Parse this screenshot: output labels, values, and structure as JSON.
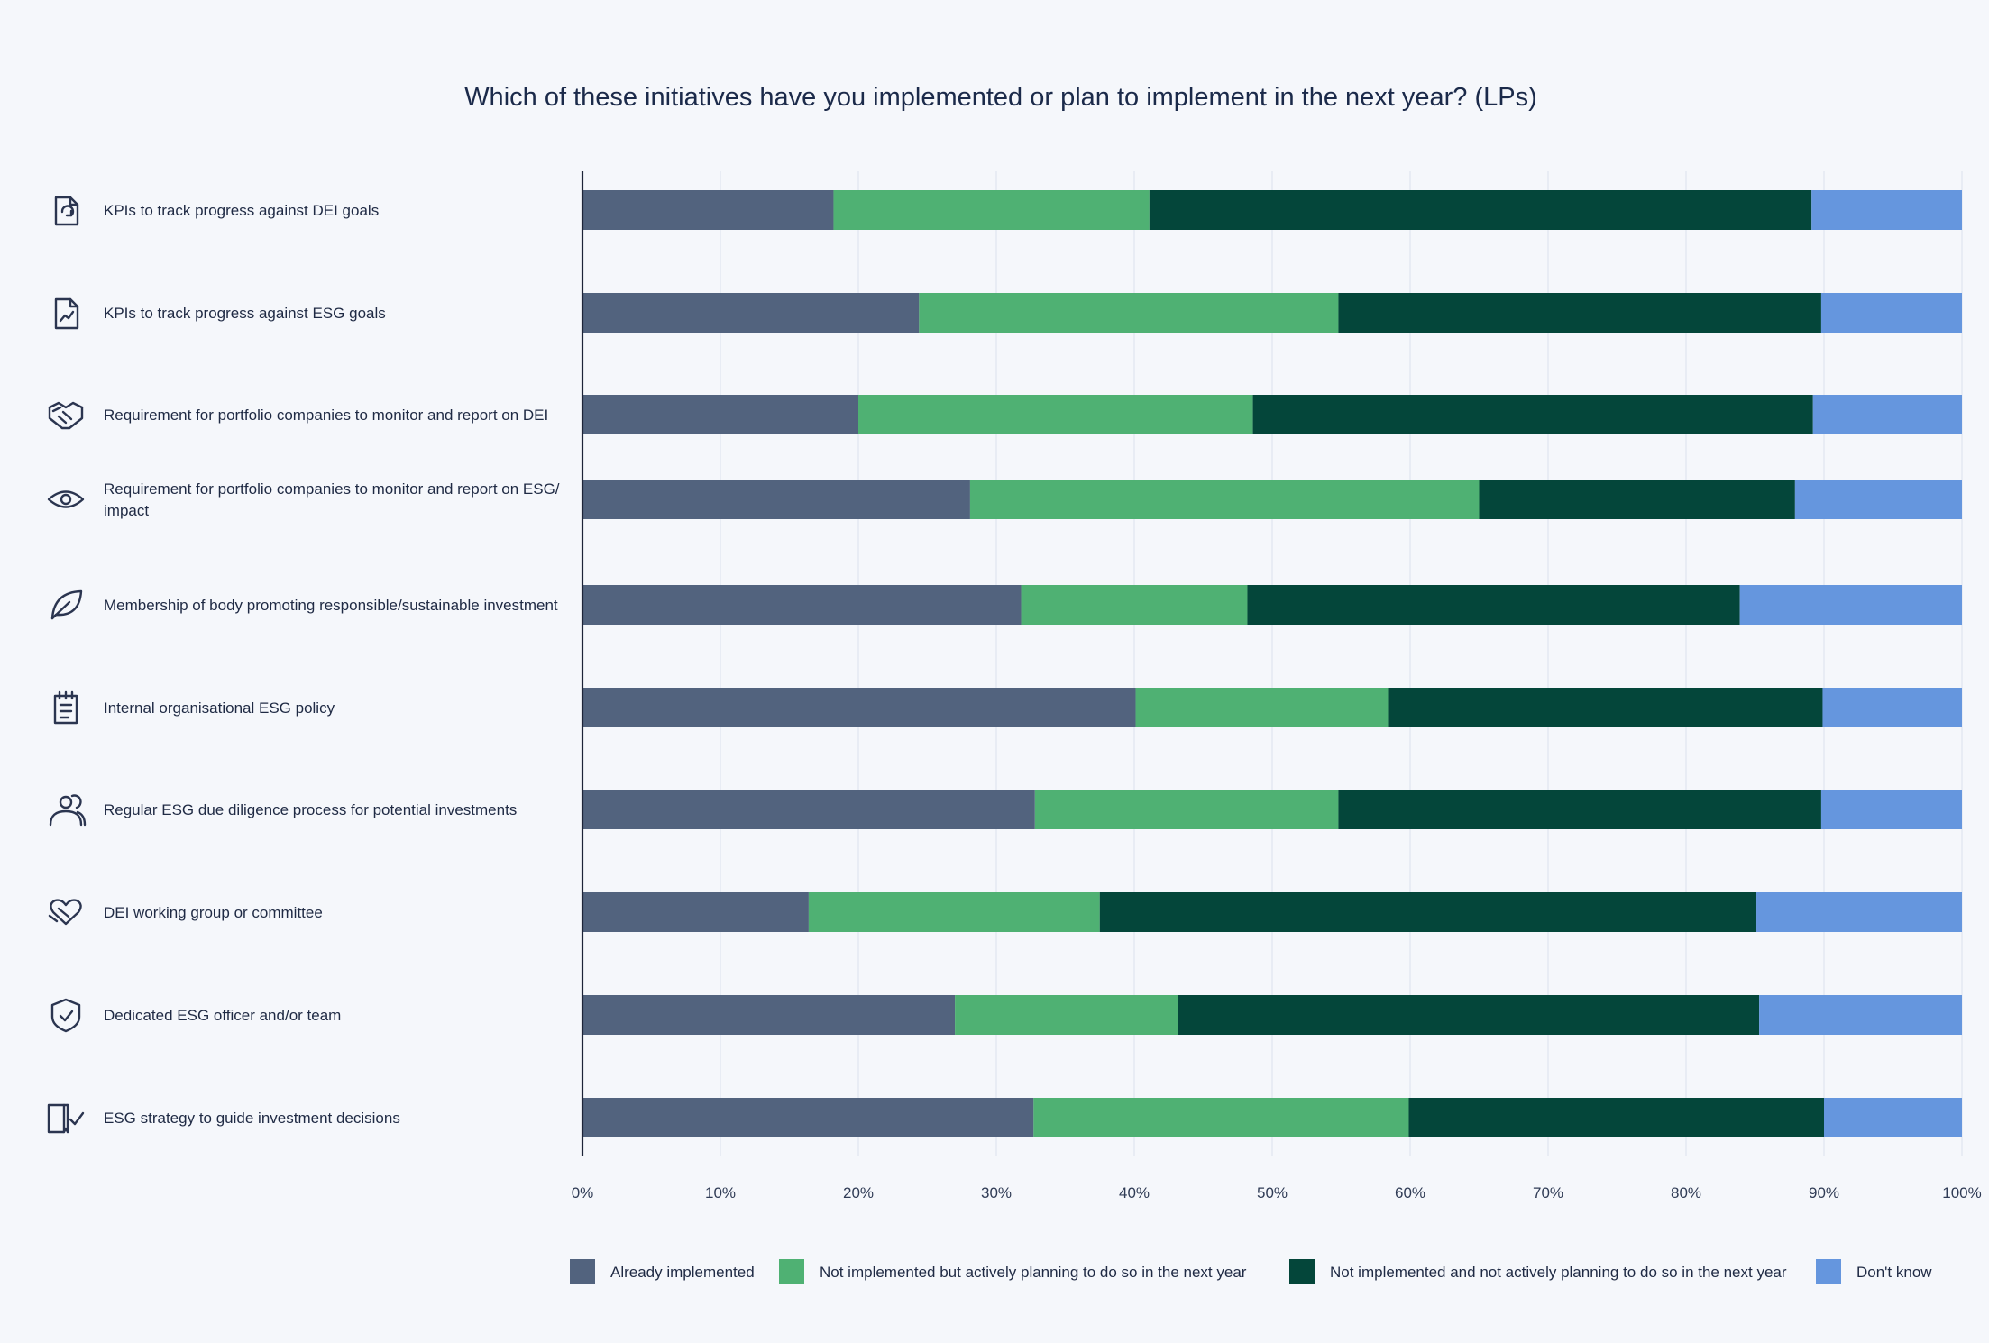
{
  "chart_data": {
    "type": "bar",
    "orientation": "horizontal",
    "stacked": true,
    "title": "Which of these initiatives have you implemented or plan to implement in the next year? (LPs)",
    "xlabel": "",
    "ylabel": "",
    "xlim": [
      0,
      100
    ],
    "x_ticks": [
      "0%",
      "10%",
      "20%",
      "30%",
      "40%",
      "50%",
      "60%",
      "70%",
      "80%",
      "90%",
      "100%"
    ],
    "grid": true,
    "legend_position": "bottom",
    "categories": [
      {
        "label_lines": [
          "KPIs to track progress against DEI goals"
        ],
        "icon": "document-cycle-icon"
      },
      {
        "label_lines": [
          "KPIs to track progress against ESG goals"
        ],
        "icon": "document-chart-icon"
      },
      {
        "label_lines": [
          "Requirement for portfolio companies to monitor and report on DEI"
        ],
        "icon": "handshake-icon"
      },
      {
        "label_lines": [
          "Requirement for portfolio companies to monitor and report on ESG/",
          "impact"
        ],
        "icon": "eye-icon"
      },
      {
        "label_lines": [
          "Membership of body promoting responsible/sustainable investment"
        ],
        "icon": "leaf-icon"
      },
      {
        "label_lines": [
          "Internal organisational ESG policy"
        ],
        "icon": "notepad-icon"
      },
      {
        "label_lines": [
          "Regular ESG due diligence process for potential investments"
        ],
        "icon": "people-icon"
      },
      {
        "label_lines": [
          "DEI working group or committee"
        ],
        "icon": "heart-hands-icon"
      },
      {
        "label_lines": [
          "Dedicated ESG officer and/or team"
        ],
        "icon": "shield-check-icon"
      },
      {
        "label_lines": [
          "ESG strategy to guide investment decisions"
        ],
        "icon": "book-check-icon"
      }
    ],
    "series": [
      {
        "name": "Already implemented",
        "color": "#52637e",
        "values": [
          18.2,
          24.4,
          20.0,
          28.1,
          31.8,
          40.1,
          32.8,
          16.4,
          27.0,
          32.7
        ]
      },
      {
        "name": "Not implemented but actively planning to do so in the next year",
        "color": "#4fb173",
        "values": [
          22.9,
          30.4,
          28.6,
          36.9,
          16.4,
          18.3,
          22.0,
          21.1,
          16.2,
          27.2
        ]
      },
      {
        "name": "Not implemented and not actively planning to do so in the next year",
        "color": "#04463a",
        "values": [
          48.0,
          35.0,
          40.6,
          22.9,
          35.7,
          31.5,
          35.0,
          47.6,
          42.1,
          30.1
        ]
      },
      {
        "name": "Don't know",
        "color": "#6596de",
        "values": [
          10.9,
          10.2,
          10.8,
          12.1,
          16.1,
          10.1,
          10.2,
          14.9,
          14.7,
          10.0
        ]
      }
    ]
  }
}
